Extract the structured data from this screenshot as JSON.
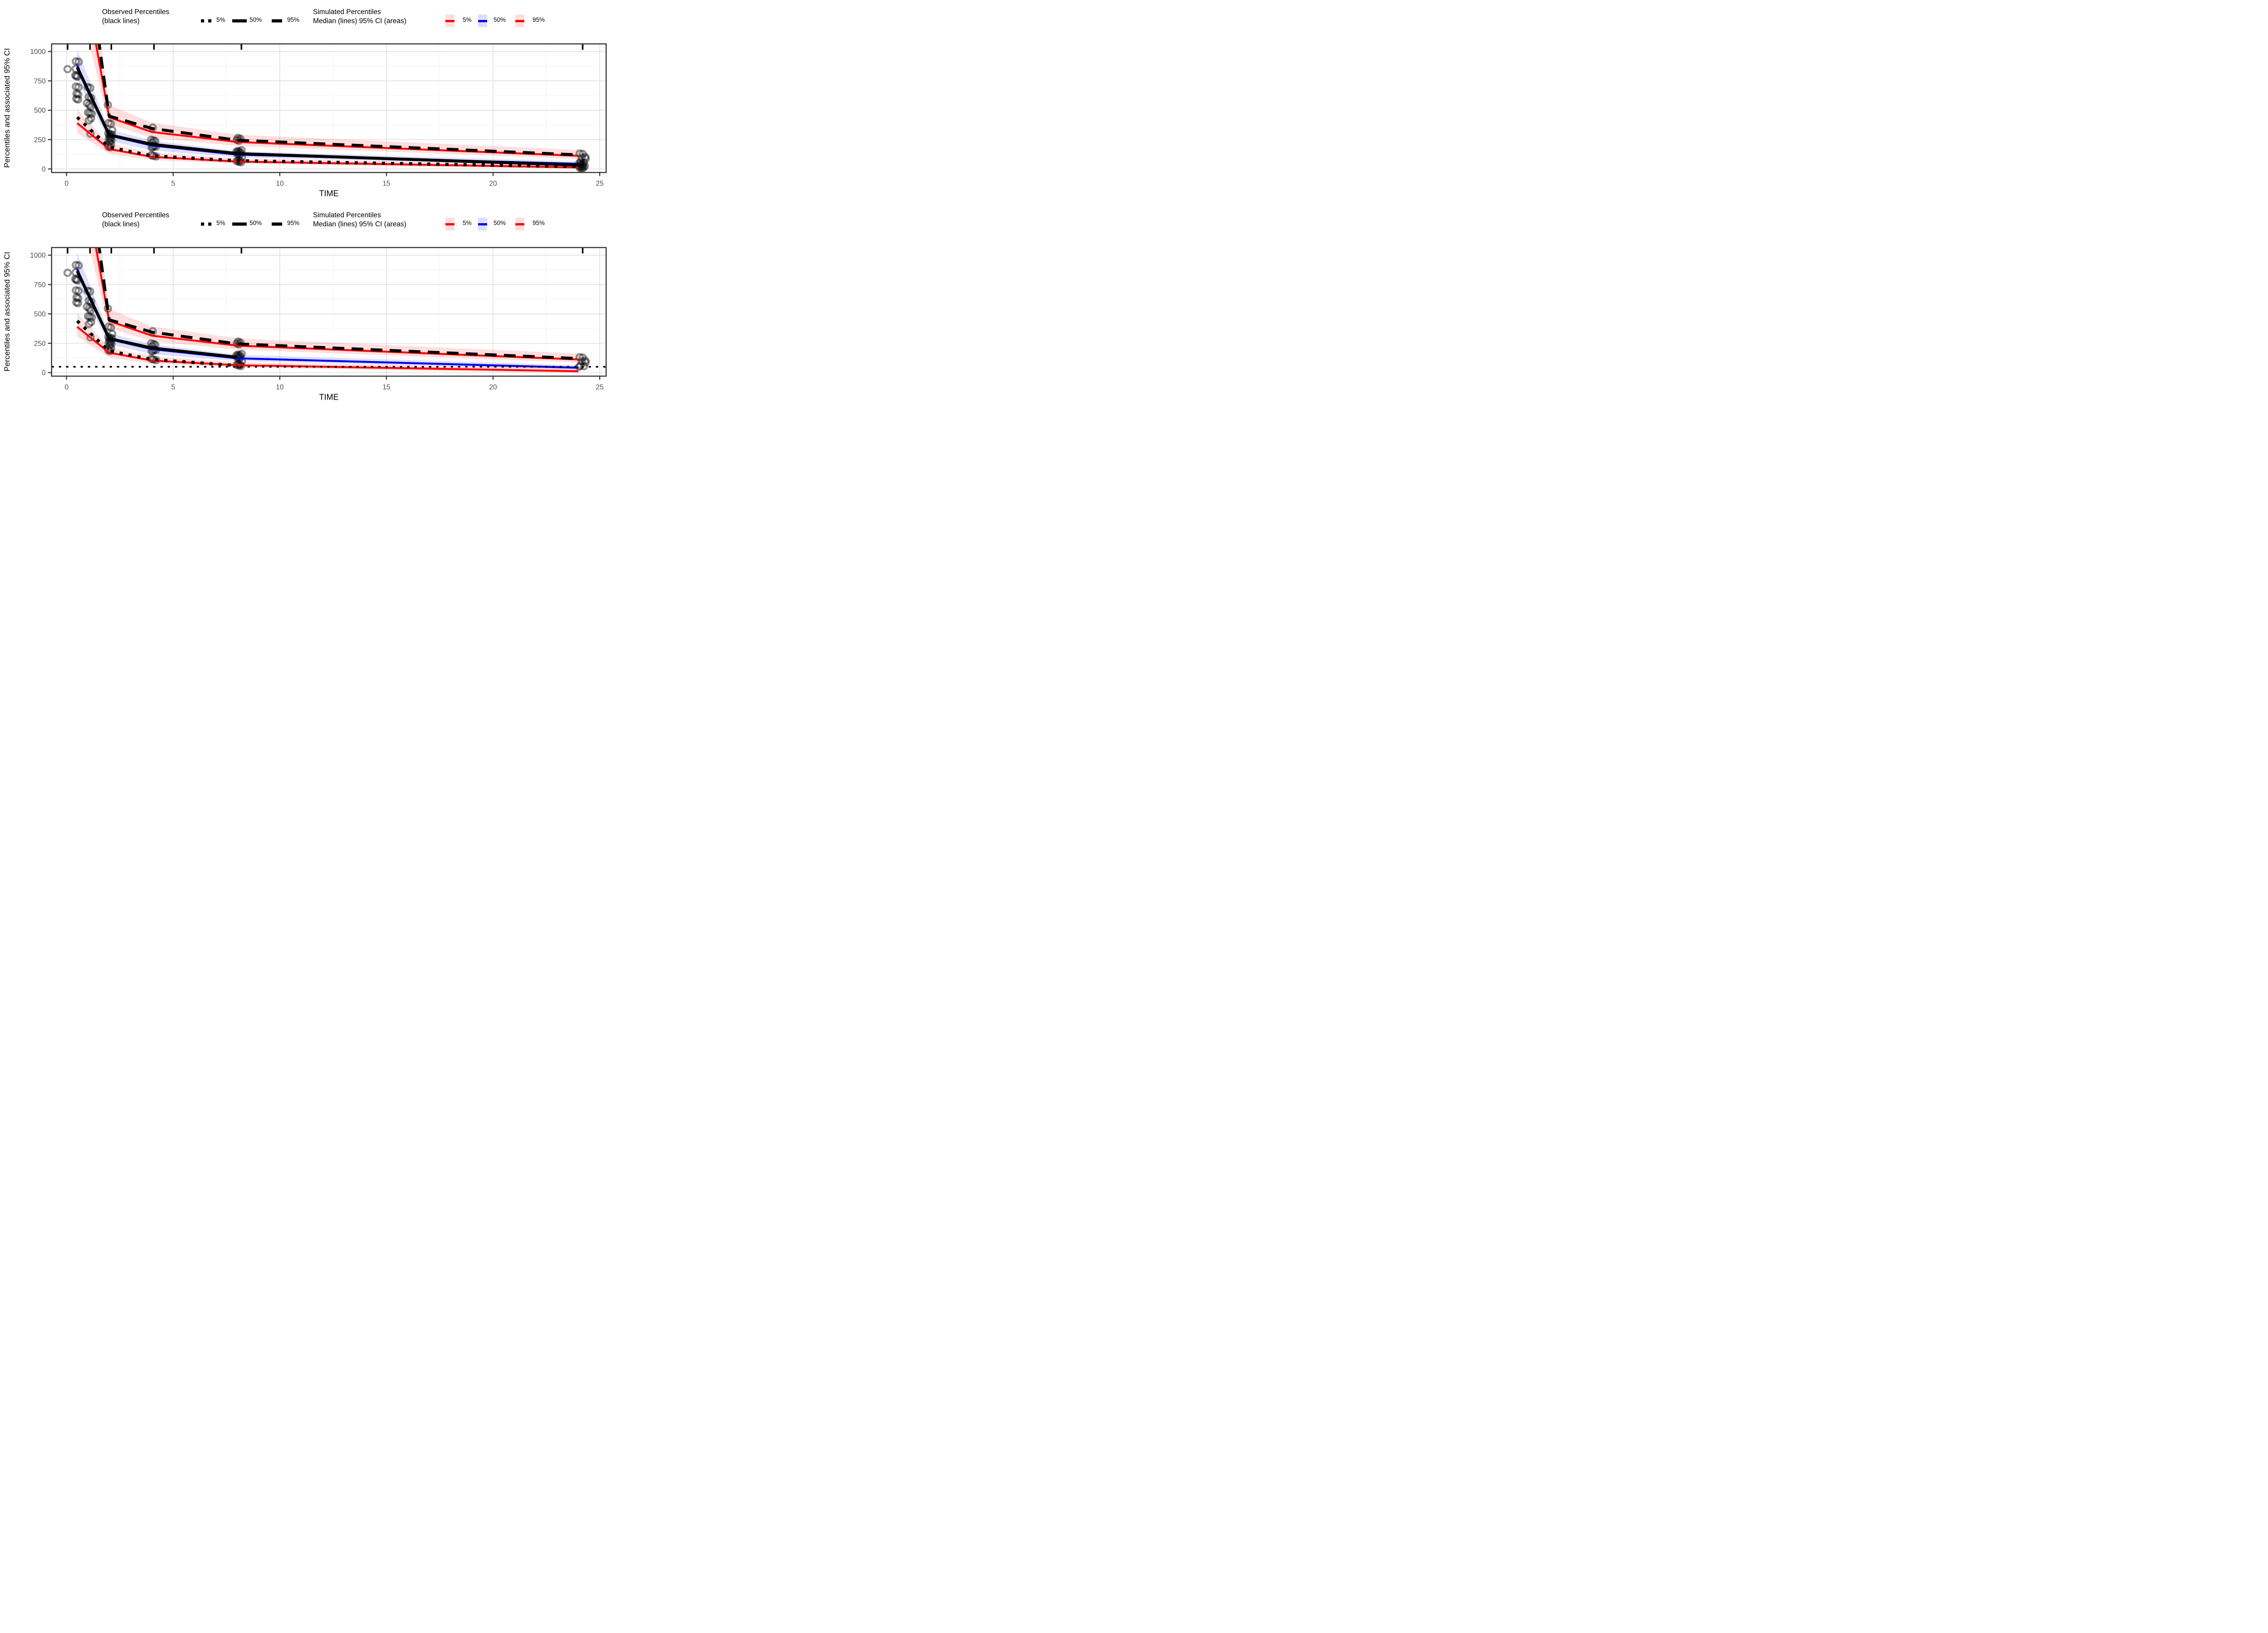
{
  "axis": {
    "x_label": "TIME",
    "y_label": "Percentiles and associated 95% CI"
  },
  "legend": {
    "observed_title": "Observed Percentiles\n(black lines)",
    "simulated_title": "Simulated Percentiles\nMedian (lines) 95% CI (areas)",
    "observed_items": [
      "5%",
      "50%",
      "95%"
    ],
    "simulated_items": [
      "5%",
      "50%",
      "95%"
    ]
  },
  "colors": {
    "observed_line": "#000000",
    "simulated_outer_median": "#ff0000",
    "simulated_inner_median": "#0000ee",
    "simulated_outer_ci_area": "rgba(255,0,0,0.13)",
    "simulated_inner_ci_area": "rgba(0,0,255,0.13)",
    "panel_border": "#333333",
    "grid_major": "#e3e3e3",
    "grid_minor": "#f2f2f2",
    "tick_label": "#4d4d4d",
    "point": "rgba(0,0,0,0.42)"
  },
  "chart_data": [
    {
      "id": "vpc-panel-1",
      "type": "line",
      "xlabel": "TIME",
      "ylabel": "Percentiles and associated 95% CI",
      "x_domain": [
        -0.7,
        25.3
      ],
      "y_domain": [
        -30,
        1065
      ],
      "x_ticks": [
        0,
        5,
        10,
        15,
        20,
        25
      ],
      "x_minor_ticks": [
        2.5,
        7.5,
        12.5,
        17.5,
        22.5
      ],
      "y_ticks": [
        0,
        250,
        500,
        750,
        1000
      ],
      "y_minor_ticks": [
        125,
        375,
        625,
        875
      ],
      "grid": true,
      "legend_position": "top",
      "bin_rug_x": [
        0.05,
        1.1,
        2.1,
        4.1,
        8.2,
        24.2
      ],
      "lloq_line": null,
      "ribbons": [
        {
          "name": "simulated-95th-ci",
          "fill": "rgba(255,0,0,0.13)",
          "x": [
            0.5,
            2,
            4,
            8,
            24
          ],
          "lo": [
            1480,
            380,
            268,
            196,
            86
          ],
          "hi": [
            2620,
            545,
            393,
            292,
            162
          ]
        },
        {
          "name": "simulated-50th-ci",
          "fill": "rgba(0,0,255,0.13)",
          "x": [
            0.5,
            2,
            4,
            8,
            24
          ],
          "lo": [
            760,
            242,
            158,
            99,
            26
          ],
          "hi": [
            1015,
            335,
            242,
            152,
            63
          ]
        },
        {
          "name": "simulated-5th-ci",
          "fill": "rgba(255,0,0,0.13)",
          "x": [
            0.5,
            2,
            4,
            8,
            24
          ],
          "lo": [
            308,
            128,
            77,
            44,
            2
          ],
          "hi": [
            506,
            216,
            138,
            89,
            34
          ]
        }
      ],
      "lines": [
        {
          "name": "simulated-median-95th",
          "style": "sim",
          "color": "#ff0000",
          "x": [
            0.5,
            2,
            4,
            8,
            24
          ],
          "y": [
            1950,
            440,
            315,
            230,
            112
          ]
        },
        {
          "name": "simulated-median-50th",
          "style": "sim",
          "color": "#0000ee",
          "x": [
            0.5,
            2,
            4,
            8,
            24
          ],
          "y": [
            880,
            285,
            200,
            122,
            44
          ]
        },
        {
          "name": "simulated-median-5th",
          "style": "sim",
          "color": "#ff0000",
          "x": [
            0.5,
            2,
            4,
            8,
            24
          ],
          "y": [
            390,
            170,
            103,
            63,
            13
          ]
        },
        {
          "name": "observed-95th",
          "style": "obs-dashed",
          "color": "#000000",
          "x": [
            0.5,
            2,
            4,
            8,
            24
          ],
          "y": [
            2400,
            450,
            345,
            245,
            120
          ]
        },
        {
          "name": "observed-50th",
          "style": "obs-solid",
          "color": "#000000",
          "x": [
            0.5,
            2,
            4,
            8,
            24
          ],
          "y": [
            865,
            290,
            210,
            131,
            33
          ]
        },
        {
          "name": "observed-5th",
          "style": "obs-dotted",
          "color": "#000000",
          "x": [
            0.5,
            2,
            4,
            8,
            24
          ],
          "y": [
            440,
            185,
            112,
            70,
            20
          ]
        }
      ],
      "points": [
        [
          0.05,
          850
        ],
        [
          0.44,
          916
        ],
        [
          0.57,
          913
        ],
        [
          0.43,
          853
        ],
        [
          0.41,
          797
        ],
        [
          0.46,
          791
        ],
        [
          0.51,
          786
        ],
        [
          0.44,
          701
        ],
        [
          0.56,
          696
        ],
        [
          0.47,
          641
        ],
        [
          0.55,
          633
        ],
        [
          0.46,
          599
        ],
        [
          0.54,
          592
        ],
        [
          0.99,
          697
        ],
        [
          1.11,
          691
        ],
        [
          1.04,
          612
        ],
        [
          1.15,
          604
        ],
        [
          0.96,
          561
        ],
        [
          1.06,
          547
        ],
        [
          1.13,
          532
        ],
        [
          1.01,
          481
        ],
        [
          1.09,
          476
        ],
        [
          1.18,
          469
        ],
        [
          1.15,
          431
        ],
        [
          1.05,
          414
        ],
        [
          1.12,
          300
        ],
        [
          1.94,
          545
        ],
        [
          1.97,
          391
        ],
        [
          2.08,
          385
        ],
        [
          2.14,
          330
        ],
        [
          1.96,
          303
        ],
        [
          2.05,
          297
        ],
        [
          2.13,
          291
        ],
        [
          2.01,
          284
        ],
        [
          2.07,
          269
        ],
        [
          1.98,
          258
        ],
        [
          2.04,
          251
        ],
        [
          2.11,
          245
        ],
        [
          2.02,
          228
        ],
        [
          2.09,
          210
        ],
        [
          1.96,
          190
        ],
        [
          2.05,
          184
        ],
        [
          4.04,
          352
        ],
        [
          3.97,
          249
        ],
        [
          4.08,
          243
        ],
        [
          4.16,
          237
        ],
        [
          4.02,
          224
        ],
        [
          4.11,
          196
        ],
        [
          4.19,
          191
        ],
        [
          4.05,
          187
        ],
        [
          3.99,
          182
        ],
        [
          3.98,
          118
        ],
        [
          4.07,
          112
        ],
        [
          4.2,
          107
        ],
        [
          8.04,
          264
        ],
        [
          8.15,
          257
        ],
        [
          7.98,
          247
        ],
        [
          8.09,
          241
        ],
        [
          8.21,
          160
        ],
        [
          8.03,
          154
        ],
        [
          8.12,
          149
        ],
        [
          7.96,
          145
        ],
        [
          8.06,
          140
        ],
        [
          8.16,
          135
        ],
        [
          8.01,
          127
        ],
        [
          8.1,
          121
        ],
        [
          8.22,
          95
        ],
        [
          8.05,
          75
        ],
        [
          8.14,
          70
        ],
        [
          7.98,
          66
        ],
        [
          8.08,
          61
        ],
        [
          8.18,
          57
        ],
        [
          24.06,
          131
        ],
        [
          24.2,
          128
        ],
        [
          24.32,
          102
        ],
        [
          24.16,
          96
        ],
        [
          24.34,
          88
        ],
        [
          24.1,
          60
        ],
        [
          24.26,
          55
        ],
        [
          24.04,
          50
        ],
        [
          24.12,
          41
        ],
        [
          24.21,
          36
        ],
        [
          24.08,
          33
        ],
        [
          24.17,
          28
        ],
        [
          24.3,
          25
        ],
        [
          24.05,
          22
        ],
        [
          24.14,
          15
        ],
        [
          24.24,
          12
        ],
        [
          24.07,
          8
        ],
        [
          24.18,
          5
        ]
      ]
    },
    {
      "id": "vpc-panel-2",
      "type": "line",
      "xlabel": "TIME",
      "ylabel": "Percentiles and associated 95% CI",
      "x_domain": [
        -0.7,
        25.3
      ],
      "y_domain": [
        -30,
        1065
      ],
      "x_ticks": [
        0,
        5,
        10,
        15,
        20,
        25
      ],
      "x_minor_ticks": [
        2.5,
        7.5,
        12.5,
        17.5,
        22.5
      ],
      "y_ticks": [
        0,
        250,
        500,
        750,
        1000
      ],
      "y_minor_ticks": [
        125,
        375,
        625,
        875
      ],
      "grid": true,
      "legend_position": "top",
      "bin_rug_x": [
        0.05,
        1.1,
        2.1,
        4.1,
        8.2,
        24.2
      ],
      "lloq_line": 50,
      "ribbons": [
        {
          "name": "simulated-95th-ci",
          "fill": "rgba(255,0,0,0.13)",
          "x": [
            0.5,
            2,
            4,
            8,
            24
          ],
          "lo": [
            1480,
            380,
            268,
            196,
            86
          ],
          "hi": [
            2620,
            545,
            393,
            292,
            162
          ]
        },
        {
          "name": "simulated-50th-ci",
          "fill": "rgba(0,0,255,0.13)",
          "x": [
            0.5,
            2,
            4,
            8,
            24
          ],
          "lo": [
            760,
            242,
            158,
            99,
            26
          ],
          "hi": [
            1015,
            335,
            242,
            152,
            63
          ]
        },
        {
          "name": "simulated-5th-ci",
          "fill": "rgba(255,0,0,0.13)",
          "x": [
            0.5,
            2,
            4,
            8,
            24
          ],
          "lo": [
            308,
            128,
            77,
            44,
            -5
          ],
          "hi": [
            506,
            216,
            138,
            89,
            34
          ]
        }
      ],
      "lines": [
        {
          "name": "simulated-median-95th",
          "style": "sim",
          "color": "#ff0000",
          "x": [
            0.5,
            2,
            4,
            8,
            24
          ],
          "y": [
            1950,
            440,
            315,
            230,
            112
          ]
        },
        {
          "name": "simulated-median-50th",
          "style": "sim",
          "color": "#0000ee",
          "x": [
            0.5,
            2,
            4,
            8,
            24
          ],
          "y": [
            880,
            285,
            200,
            122,
            42
          ]
        },
        {
          "name": "simulated-median-5th",
          "style": "sim",
          "color": "#ff0000",
          "x": [
            0.5,
            2,
            4,
            8,
            24
          ],
          "y": [
            390,
            170,
            103,
            63,
            12
          ]
        },
        {
          "name": "observed-95th",
          "style": "obs-dashed",
          "color": "#000000",
          "x": [
            0.5,
            2,
            4,
            8,
            24
          ],
          "y": [
            2400,
            450,
            345,
            245,
            120
          ]
        },
        {
          "name": "observed-50th-censored",
          "style": "obs-solid",
          "color": "#000000",
          "x": [
            0.5,
            2,
            4,
            8
          ],
          "y": [
            865,
            290,
            210,
            131
          ]
        },
        {
          "name": "observed-5th-censored",
          "style": "obs-dotted",
          "color": "#000000",
          "x": [
            0.5,
            2,
            4,
            8
          ],
          "y": [
            440,
            185,
            112,
            60
          ]
        }
      ],
      "points": [
        [
          0.05,
          850
        ],
        [
          0.44,
          916
        ],
        [
          0.57,
          913
        ],
        [
          0.43,
          853
        ],
        [
          0.41,
          797
        ],
        [
          0.46,
          791
        ],
        [
          0.51,
          786
        ],
        [
          0.44,
          701
        ],
        [
          0.56,
          696
        ],
        [
          0.47,
          641
        ],
        [
          0.55,
          633
        ],
        [
          0.46,
          599
        ],
        [
          0.54,
          592
        ],
        [
          0.99,
          697
        ],
        [
          1.11,
          691
        ],
        [
          1.04,
          612
        ],
        [
          1.15,
          604
        ],
        [
          0.96,
          561
        ],
        [
          1.06,
          547
        ],
        [
          1.13,
          532
        ],
        [
          1.01,
          481
        ],
        [
          1.09,
          476
        ],
        [
          1.18,
          469
        ],
        [
          1.15,
          431
        ],
        [
          1.05,
          414
        ],
        [
          1.12,
          300
        ],
        [
          1.94,
          545
        ],
        [
          1.97,
          391
        ],
        [
          2.08,
          385
        ],
        [
          2.14,
          330
        ],
        [
          1.96,
          303
        ],
        [
          2.05,
          297
        ],
        [
          2.13,
          291
        ],
        [
          2.01,
          284
        ],
        [
          2.07,
          269
        ],
        [
          1.98,
          258
        ],
        [
          2.04,
          251
        ],
        [
          2.11,
          245
        ],
        [
          2.02,
          228
        ],
        [
          2.09,
          210
        ],
        [
          1.96,
          190
        ],
        [
          2.05,
          184
        ],
        [
          4.04,
          352
        ],
        [
          3.97,
          249
        ],
        [
          4.08,
          243
        ],
        [
          4.16,
          237
        ],
        [
          4.02,
          224
        ],
        [
          4.11,
          196
        ],
        [
          4.19,
          191
        ],
        [
          4.05,
          187
        ],
        [
          3.99,
          182
        ],
        [
          3.98,
          118
        ],
        [
          4.07,
          112
        ],
        [
          4.2,
          107
        ],
        [
          8.04,
          264
        ],
        [
          8.15,
          257
        ],
        [
          7.98,
          247
        ],
        [
          8.09,
          241
        ],
        [
          8.21,
          160
        ],
        [
          8.03,
          154
        ],
        [
          8.12,
          149
        ],
        [
          7.96,
          145
        ],
        [
          8.06,
          140
        ],
        [
          8.16,
          135
        ],
        [
          8.01,
          127
        ],
        [
          8.1,
          121
        ],
        [
          8.22,
          95
        ],
        [
          8.05,
          75
        ],
        [
          8.14,
          70
        ],
        [
          7.98,
          66
        ],
        [
          8.08,
          61
        ],
        [
          8.18,
          57
        ],
        [
          24.06,
          131
        ],
        [
          24.2,
          128
        ],
        [
          24.32,
          102
        ],
        [
          24.16,
          96
        ],
        [
          24.34,
          88
        ],
        [
          24.1,
          60
        ],
        [
          24.26,
          55
        ],
        [
          24.04,
          50
        ]
      ]
    }
  ]
}
